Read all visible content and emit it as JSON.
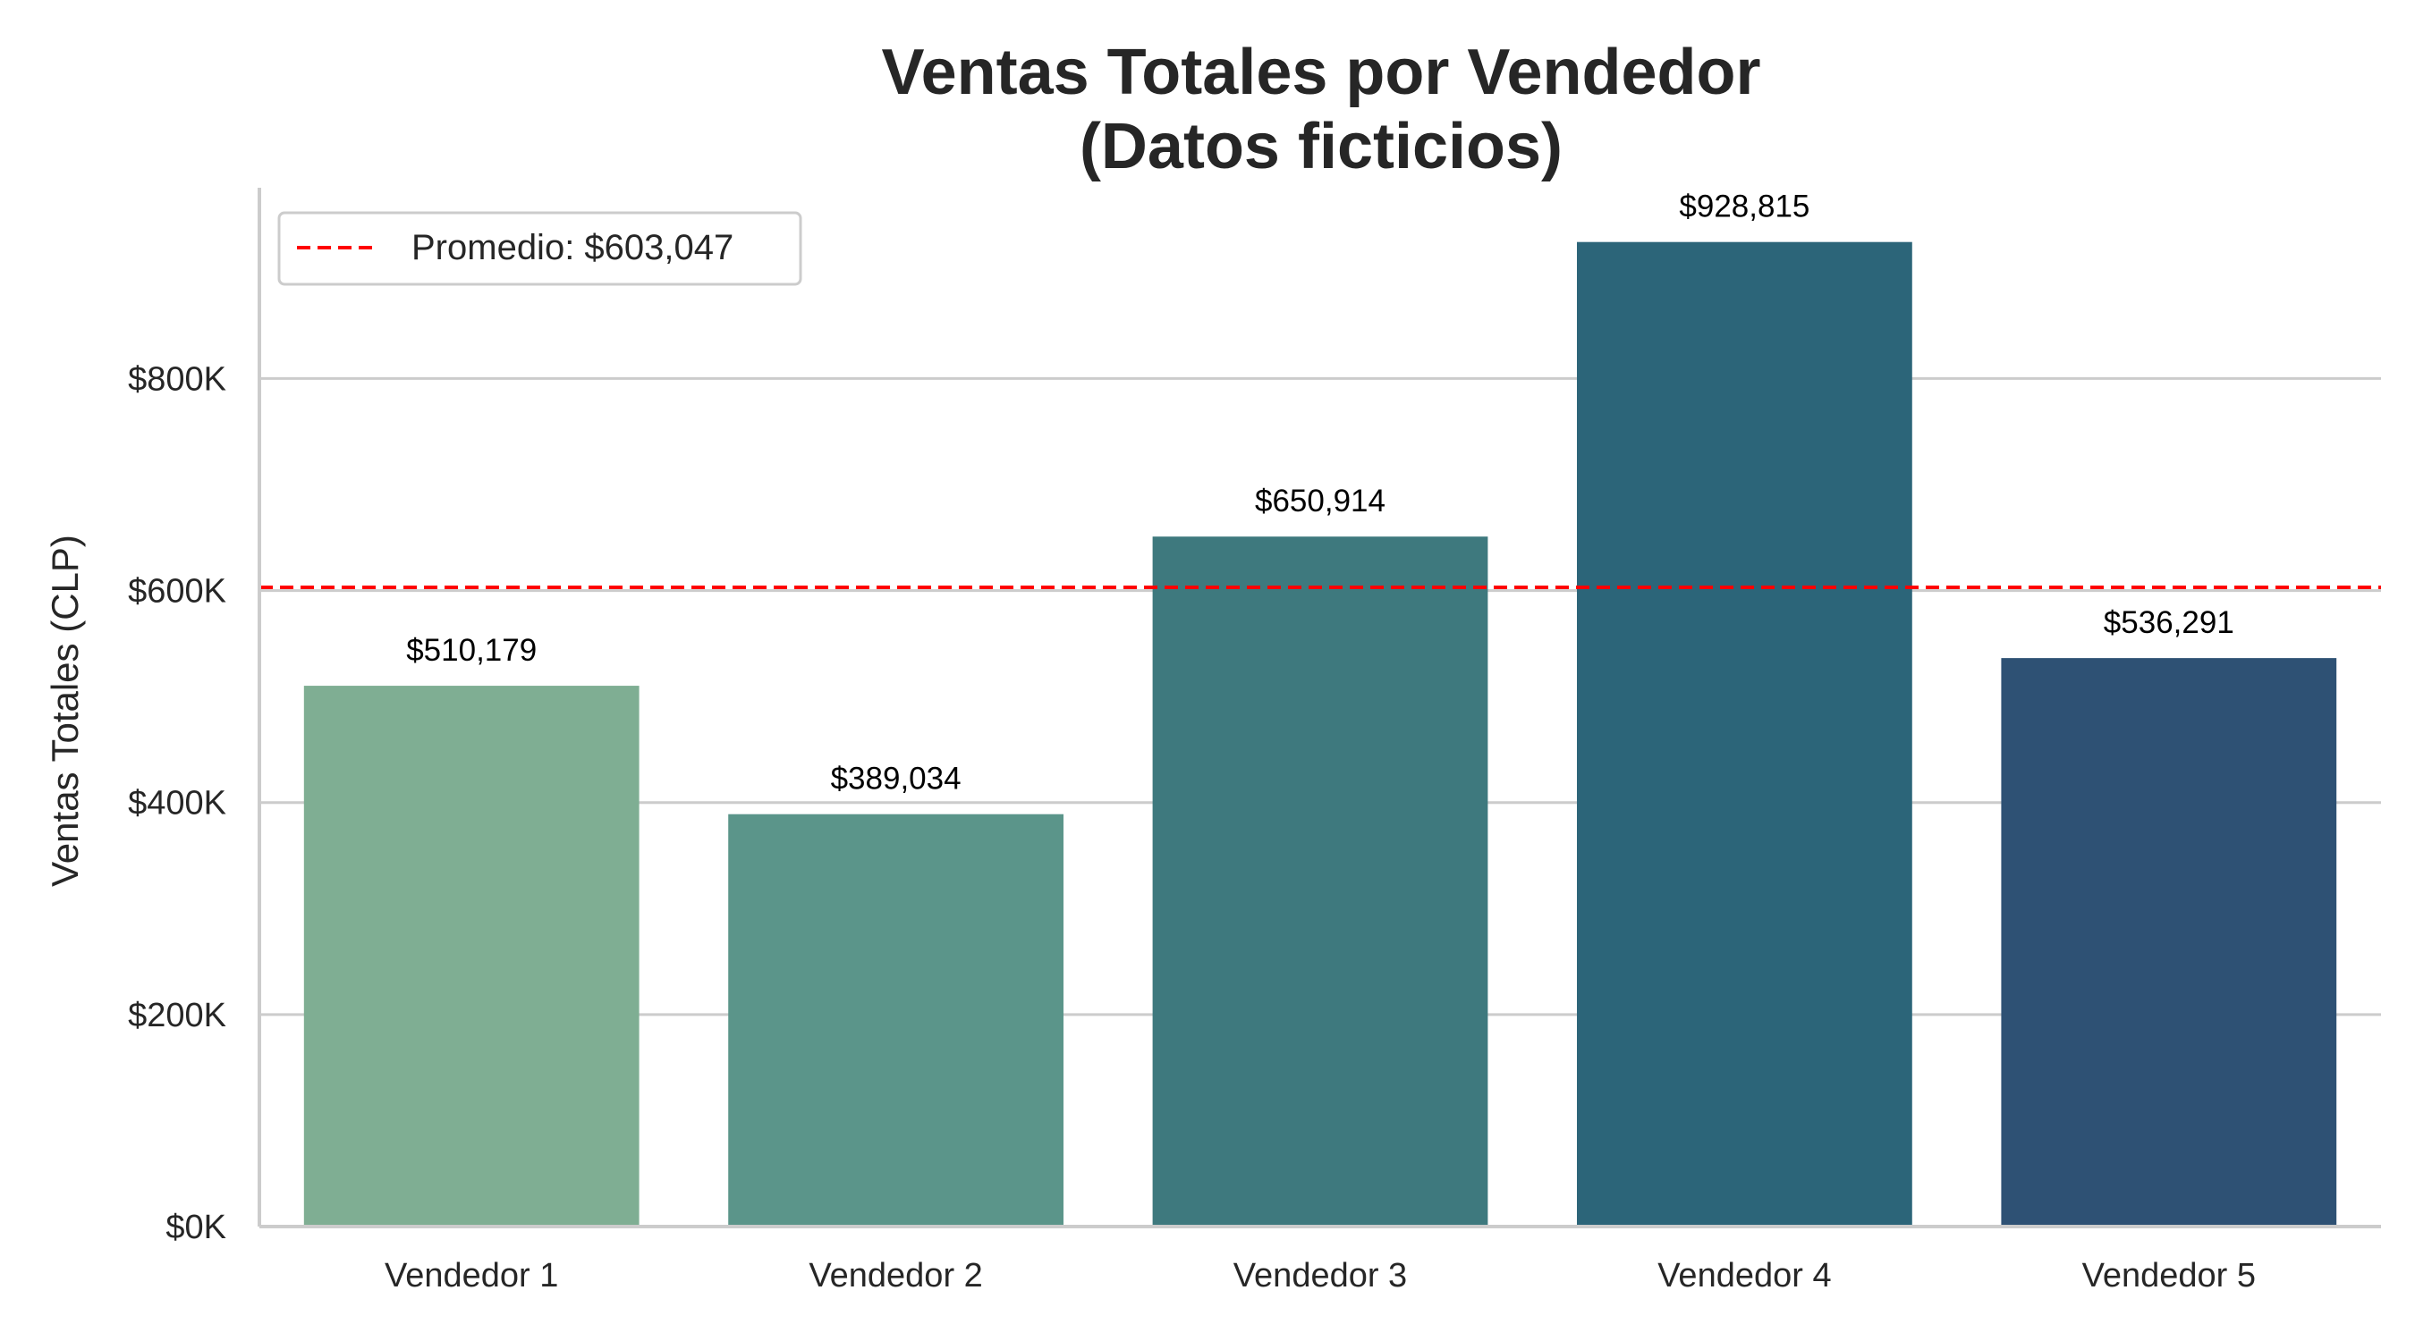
{
  "chart_data": {
    "type": "bar",
    "title_lines": [
      "Ventas Totales por Vendedor",
      "(Datos ficticios)"
    ],
    "ylabel": "Ventas Totales (CLP)",
    "xlabel": "",
    "categories": [
      "Vendedor 1",
      "Vendedor 2",
      "Vendedor 3",
      "Vendedor 4",
      "Vendedor 5"
    ],
    "values": [
      510179,
      389034,
      650914,
      928815,
      536291
    ],
    "value_labels": [
      "$510,179",
      "$389,034",
      "$650,914",
      "$928,815",
      "$536,291"
    ],
    "bar_colors": [
      "#7fae93",
      "#5b958a",
      "#3e797e",
      "#2c6579",
      "#2e5174"
    ],
    "ylim": [
      0,
      980000
    ],
    "yticks": [
      0,
      200000,
      400000,
      600000,
      800000
    ],
    "ytick_labels": [
      "$0K",
      "$200K",
      "$400K",
      "$600K",
      "$800K"
    ],
    "grid": "horizontal",
    "average_line": {
      "value": 603047,
      "color": "#ff0000",
      "label": "Promedio: $603,047"
    },
    "legend_position": "top-left"
  }
}
